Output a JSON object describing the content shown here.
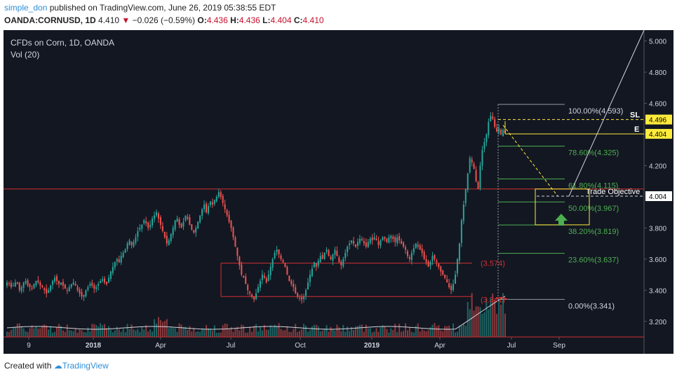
{
  "header": {
    "user": "simple_don",
    "published": "published on TradingView.com, June 26, 2019 05:38:55 EDT",
    "symbol": "OANDA:CORNUSD, 1D",
    "last": "4.410",
    "change_arrow": "▼",
    "change": "−0.026 (−0.59%)",
    "o_label": "O:",
    "o": "4.436",
    "h_label": "H:",
    "h": "4.436",
    "l_label": "L:",
    "l": "4.404",
    "c_label": "C:",
    "c": "4.410"
  },
  "chart": {
    "title": "CFDs on Corn, 1D, OANDA",
    "volume_label": "Vol (20)"
  },
  "footer": {
    "created_with": "Created with",
    "brand": "TradingView"
  },
  "colors": {
    "background": "#131722",
    "candle_up": "#26a69a",
    "candle_down": "#ef5350",
    "fib_green": "#4caf50",
    "red_line": "#d32f2f",
    "yellow": "#ffeb3b"
  },
  "chart_data": {
    "type": "candlestick",
    "title": "CFDs on Corn, 1D, OANDA",
    "y_axis_ticks": [
      "5.000",
      "4.800",
      "4.600",
      "4.400",
      "4.200",
      "4.004",
      "3.800",
      "3.600",
      "3.400",
      "3.200"
    ],
    "x_axis_ticks": [
      "9",
      "2018",
      "Apr",
      "Jul",
      "Oct",
      "2019",
      "Apr",
      "Jul",
      "Sep"
    ],
    "ylim": [
      3.1,
      5.07
    ],
    "price_labels": [
      {
        "label": "SL",
        "value": "4.496"
      },
      {
        "label": "E",
        "value": "4.404"
      },
      {
        "label": "",
        "value": "4.004"
      }
    ],
    "fib_levels": [
      {
        "label": "100.00%(4.593)",
        "value": 4.593
      },
      {
        "label": "78.60%(4.325)",
        "value": 4.325
      },
      {
        "label": "61.80%(4.115)",
        "value": 4.115
      },
      {
        "label": "50.00%(3.967)",
        "value": 3.967
      },
      {
        "label": "38.20%(3.819)",
        "value": 3.819
      },
      {
        "label": "23.60%(3.637)",
        "value": 3.637
      },
      {
        "label": "0.00%(3.341)",
        "value": 3.341
      }
    ],
    "annotations": [
      {
        "text": "Trade Objective"
      },
      {
        "text": "(3.574)",
        "value": 3.574
      },
      {
        "text": "(3.341)",
        "value": 3.341
      }
    ],
    "horizontal_lines": [
      4.05,
      3.574,
      3.36,
      3.1
    ],
    "closes": [
      3.45,
      3.44,
      3.42,
      3.43,
      3.45,
      3.44,
      3.4,
      3.42,
      3.45,
      3.46,
      3.43,
      3.42,
      3.41,
      3.44,
      3.46,
      3.45,
      3.43,
      3.42,
      3.4,
      3.38,
      3.4,
      3.43,
      3.46,
      3.48,
      3.46,
      3.44,
      3.45,
      3.43,
      3.41,
      3.4,
      3.42,
      3.44,
      3.45,
      3.43,
      3.4,
      3.38,
      3.36,
      3.37,
      3.4,
      3.42,
      3.44,
      3.43,
      3.41,
      3.42,
      3.44,
      3.46,
      3.47,
      3.45,
      3.44,
      3.48,
      3.52,
      3.55,
      3.58,
      3.6,
      3.58,
      3.62,
      3.64,
      3.66,
      3.7,
      3.72,
      3.69,
      3.71,
      3.74,
      3.78,
      3.8,
      3.82,
      3.85,
      3.83,
      3.8,
      3.82,
      3.86,
      3.88,
      3.9,
      3.86,
      3.82,
      3.78,
      3.74,
      3.7,
      3.72,
      3.76,
      3.8,
      3.85,
      3.86,
      3.82,
      3.8,
      3.84,
      3.88,
      3.86,
      3.82,
      3.79,
      3.77,
      3.8,
      3.84,
      3.88,
      3.92,
      3.95,
      3.9,
      3.94,
      3.97,
      3.95,
      3.98,
      4.0,
      4.03,
      4.0,
      3.96,
      3.92,
      3.88,
      3.84,
      3.8,
      3.74,
      3.68,
      3.62,
      3.56,
      3.5,
      3.48,
      3.44,
      3.4,
      3.38,
      3.36,
      3.34,
      3.38,
      3.42,
      3.46,
      3.5,
      3.48,
      3.45,
      3.5,
      3.55,
      3.6,
      3.64,
      3.66,
      3.63,
      3.6,
      3.58,
      3.55,
      3.5,
      3.46,
      3.44,
      3.42,
      3.38,
      3.36,
      3.35,
      3.34,
      3.36,
      3.4,
      3.45,
      3.5,
      3.54,
      3.58,
      3.55,
      3.59,
      3.62,
      3.6,
      3.64,
      3.66,
      3.62,
      3.6,
      3.63,
      3.66,
      3.62,
      3.58,
      3.56,
      3.6,
      3.64,
      3.68,
      3.7,
      3.72,
      3.7,
      3.68,
      3.71,
      3.73,
      3.72,
      3.7,
      3.68,
      3.71,
      3.73,
      3.72,
      3.74,
      3.72,
      3.69,
      3.72,
      3.74,
      3.73,
      3.71,
      3.74,
      3.75,
      3.73,
      3.71,
      3.74,
      3.72,
      3.7,
      3.68,
      3.66,
      3.62,
      3.6,
      3.64,
      3.67,
      3.7,
      3.68,
      3.66,
      3.64,
      3.6,
      3.58,
      3.55,
      3.58,
      3.62,
      3.6,
      3.58,
      3.55,
      3.52,
      3.5,
      3.48,
      3.45,
      3.42,
      3.4,
      3.44,
      3.5,
      3.6,
      3.7,
      3.85,
      3.95,
      4.05,
      4.15,
      4.25,
      4.22,
      4.18,
      4.1,
      4.05,
      4.2,
      4.3,
      4.35,
      4.4,
      4.48,
      4.52,
      4.5,
      4.45,
      4.42,
      4.44,
      4.4,
      4.43,
      4.41
    ]
  }
}
